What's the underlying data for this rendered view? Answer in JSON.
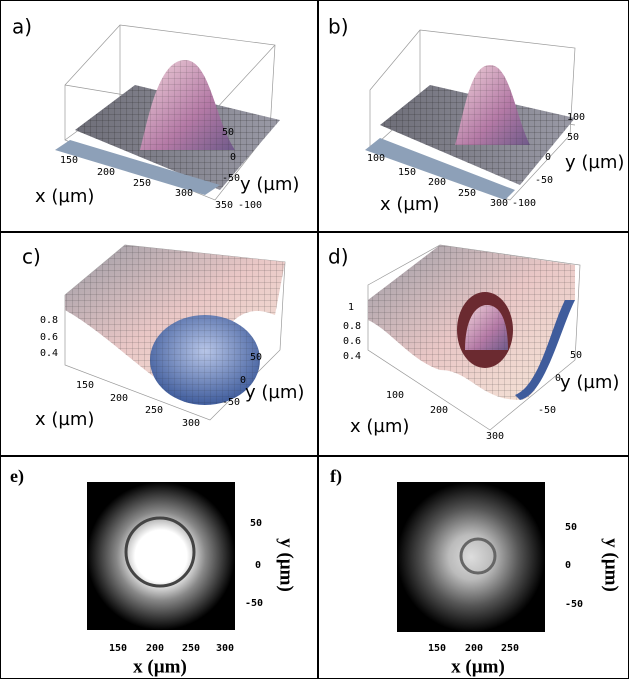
{
  "panels": [
    {
      "label": "a)",
      "x_label": "x (µm)",
      "y_label": "y (µm)",
      "x_ticks": [
        "150",
        "200",
        "250",
        "300",
        "350"
      ],
      "y_ticks": [
        "50",
        "0",
        "-50",
        "-100"
      ]
    },
    {
      "label": "b)",
      "x_label": "x (µm)",
      "y_label": "y (µm)",
      "x_ticks": [
        "100",
        "150",
        "200",
        "250",
        "300"
      ],
      "y_ticks": [
        "100",
        "50",
        "0",
        "-50",
        "-100"
      ]
    },
    {
      "label": "c)",
      "x_label": "x (µm)",
      "y_label": "y (µm)",
      "z_ticks": [
        "0.8",
        "0.6",
        "0.4"
      ],
      "x_ticks": [
        "150",
        "200",
        "250",
        "300"
      ],
      "y_ticks": [
        "50",
        "0",
        "-50"
      ]
    },
    {
      "label": "d)",
      "x_label": "x (µm)",
      "y_label": "y (µm)",
      "z_ticks": [
        "1",
        "0.8",
        "0.6",
        "0.4"
      ],
      "x_ticks": [
        "100",
        "200",
        "300"
      ],
      "y_ticks": [
        "50",
        "0",
        "-50"
      ]
    },
    {
      "label": "e)",
      "x_label": "x (µm)",
      "y_label": "y (µm)",
      "x_ticks": [
        "150",
        "200",
        "250",
        "300"
      ],
      "y_ticks": [
        "50",
        "0",
        "-50"
      ]
    },
    {
      "label": "f)",
      "x_label": "x (µm)",
      "y_label": "y (µm)",
      "x_ticks": [
        "150",
        "200",
        "250"
      ],
      "y_ticks": [
        "50",
        "0",
        "-50"
      ]
    }
  ]
}
